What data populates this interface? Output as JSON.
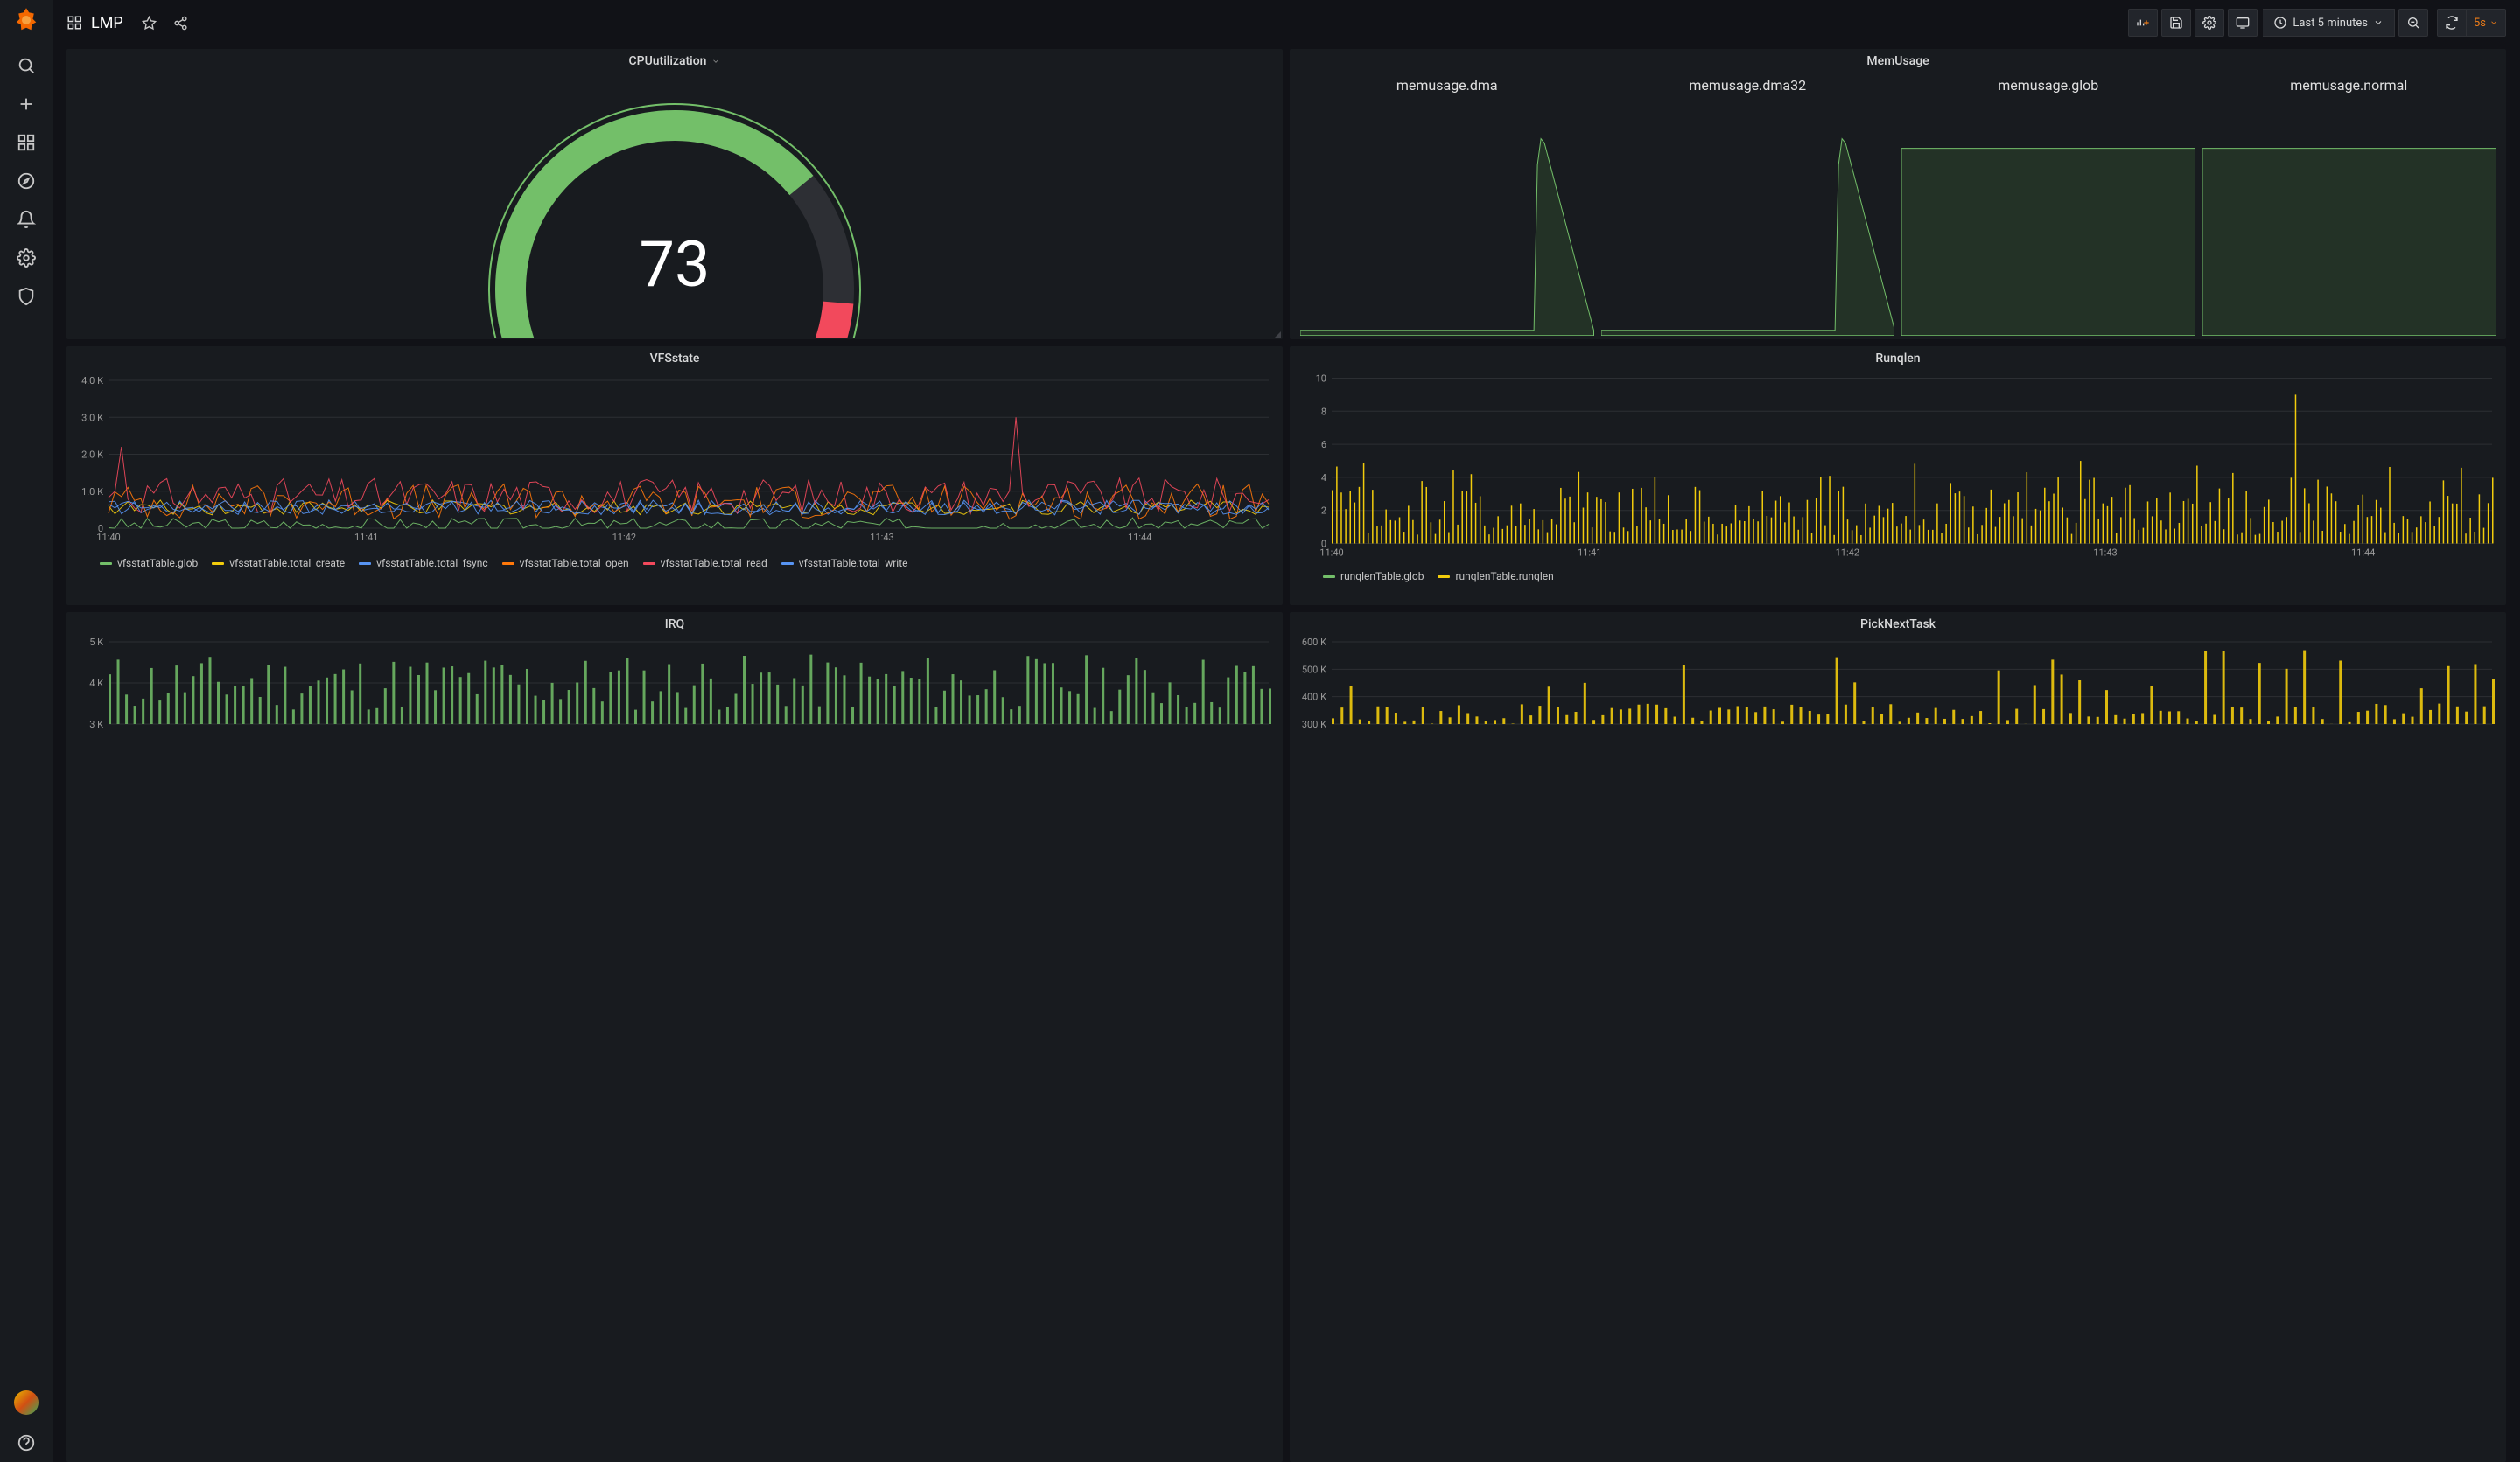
{
  "header": {
    "title": "LMP",
    "timerange": "Last 5 minutes",
    "refresh_rate": "5s"
  },
  "colors": {
    "bg": "#111217",
    "panel": "#181b1f",
    "accent": "#eb7b18",
    "gauge_fill": "#73bf69",
    "gauge_warn": "#f2495c",
    "gauge_track": "#2d2f34",
    "grid": "#2c2f33",
    "text_muted": "#9a9a9a"
  },
  "panels": {
    "cpu": {
      "title": "CPUutilization",
      "type": "gauge",
      "value": 73,
      "min": 0,
      "max": 100,
      "fill_pct": 73,
      "warn_from_pct": 93,
      "fill_color": "#73bf69",
      "warn_color": "#f2495c",
      "track_color": "#2d2f34",
      "value_fontsize": 72,
      "value_color": "#ffffff"
    },
    "mem": {
      "title": "MemUsage",
      "type": "sparkline-row",
      "label_fontsize": 16,
      "line_color": "#73bf69",
      "fill_color": "#3a5f35",
      "items": [
        {
          "label": "memusage.dma",
          "shape": "spike-late"
        },
        {
          "label": "memusage.dma32",
          "shape": "spike-late"
        },
        {
          "label": "memusage.glob",
          "shape": "flat-high"
        },
        {
          "label": "memusage.normal",
          "shape": "flat-high"
        }
      ]
    },
    "vfs": {
      "title": "VFSstate",
      "type": "line",
      "ylim": [
        0,
        4000
      ],
      "yticks": [
        "0",
        "1.0 K",
        "2.0 K",
        "3.0 K",
        "4.0 K"
      ],
      "xticks": [
        "11:40",
        "11:41",
        "11:42",
        "11:43",
        "11:44"
      ],
      "grid_color": "#2c2f33",
      "series": [
        {
          "name": "vfsstatTable.glob",
          "color": "#73bf69"
        },
        {
          "name": "vfsstatTable.total_create",
          "color": "#f2cc0c"
        },
        {
          "name": "vfsstatTable.total_fsync",
          "color": "#5794f2"
        },
        {
          "name": "vfsstatTable.total_open",
          "color": "#ff780a"
        },
        {
          "name": "vfsstatTable.total_read",
          "color": "#f2495c"
        },
        {
          "name": "vfsstatTable.total_write",
          "color": "#5794f2"
        }
      ]
    },
    "runqlen": {
      "title": "Runqlen",
      "type": "bar",
      "ylim": [
        0,
        10
      ],
      "yticks": [
        "0",
        "2",
        "4",
        "6",
        "8",
        "10"
      ],
      "xticks": [
        "11:40",
        "11:41",
        "11:42",
        "11:43",
        "11:44"
      ],
      "grid_color": "#2c2f33",
      "series": [
        {
          "name": "runqlenTable.glob",
          "color": "#73bf69"
        },
        {
          "name": "runqlenTable.runqlen",
          "color": "#f2cc0c"
        }
      ]
    },
    "irq": {
      "title": "IRQ",
      "type": "bar",
      "ylim": [
        3000,
        5000
      ],
      "yticks": [
        "3 K",
        "4 K",
        "5 K"
      ],
      "grid_color": "#2c2f33",
      "bar_color": "#73bf69"
    },
    "picknext": {
      "title": "PickNextTask",
      "type": "bar",
      "ylim": [
        300000,
        600000
      ],
      "yticks": [
        "300 K",
        "400 K",
        "500 K",
        "600 K"
      ],
      "grid_color": "#2c2f33",
      "bar_color": "#f2cc0c"
    }
  }
}
